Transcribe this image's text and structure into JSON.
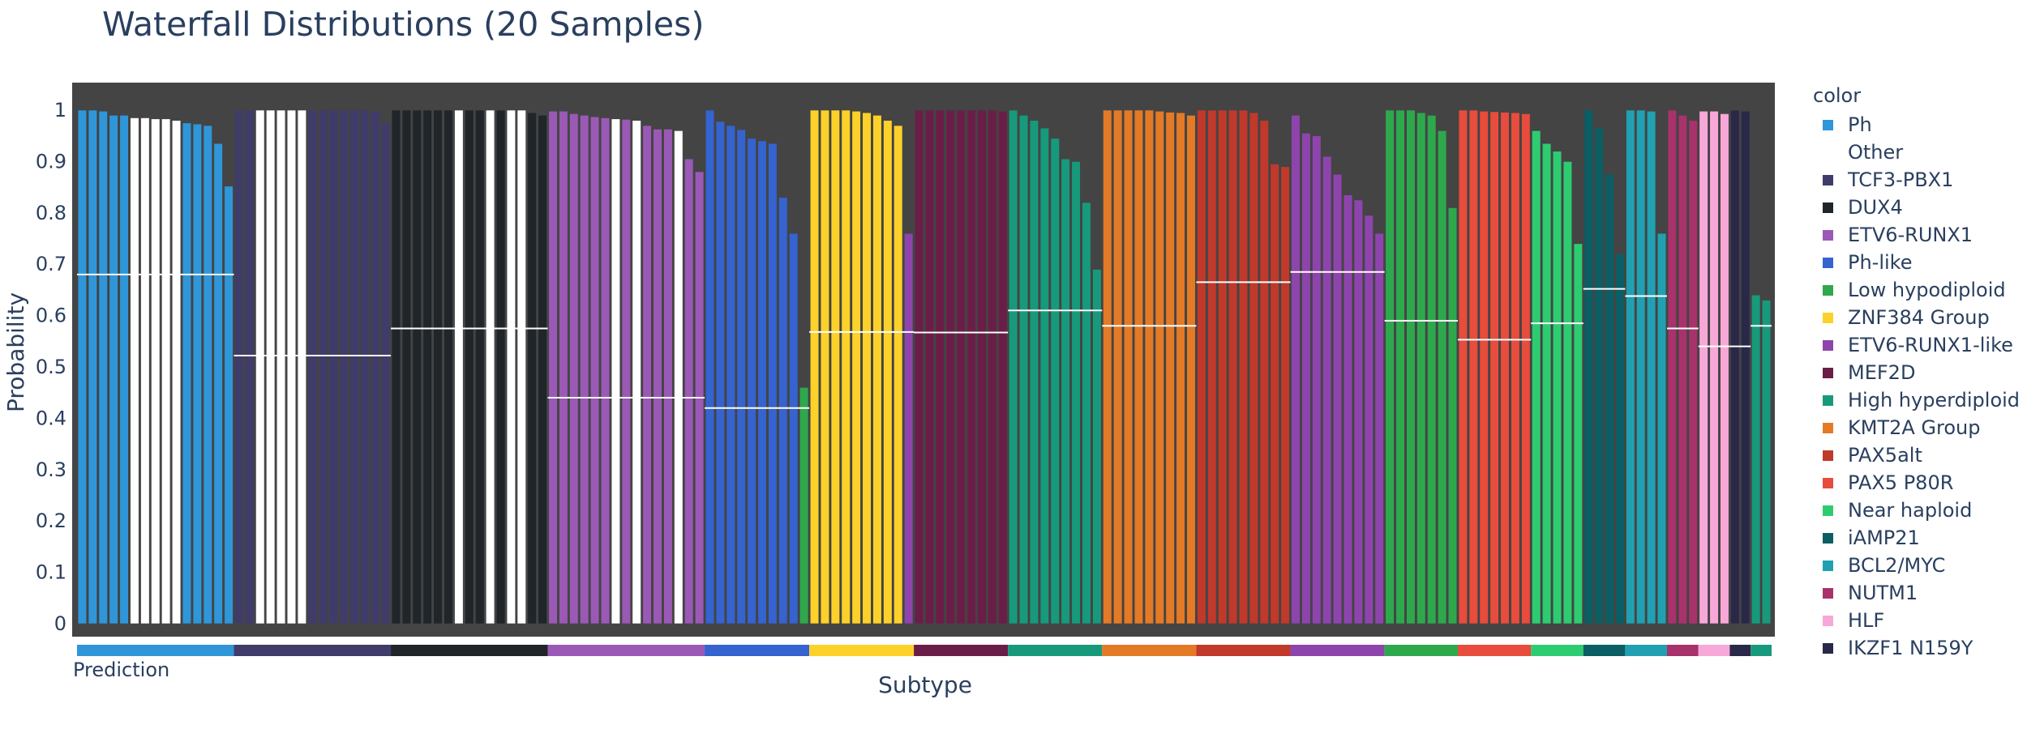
{
  "title": "Waterfall Distributions (20 Samples)",
  "chart_data": {
    "type": "bar",
    "title": "Waterfall Distributions (20 Samples)",
    "xlabel": "Subtype",
    "ylabel": "Probability",
    "ylim": [
      0,
      1
    ],
    "yticks": [
      "0",
      "0.1",
      "0.2",
      "0.3",
      "0.4",
      "0.5",
      "0.6",
      "0.7",
      "0.8",
      "0.9",
      "1"
    ],
    "plot_background": "#444444",
    "grid": false,
    "legend_title": "color",
    "legend_position": "right",
    "bottom_strip_label": "Prediction",
    "legend": [
      {
        "name": "Ph",
        "color": "#2f96d9"
      },
      {
        "name": "Other",
        "color": "#ffffff"
      },
      {
        "name": "TCF3-PBX1",
        "color": "#3f3c6b"
      },
      {
        "name": "DUX4",
        "color": "#1f2529"
      },
      {
        "name": "ETV6-RUNX1",
        "color": "#9b59b6"
      },
      {
        "name": "Ph-like",
        "color": "#3563cf"
      },
      {
        "name": "Low hypodiploid",
        "color": "#2ea84d"
      },
      {
        "name": "ZNF384 Group",
        "color": "#fcd12a"
      },
      {
        "name": "ETV6-RUNX1-like",
        "color": "#8e44ad"
      },
      {
        "name": "MEF2D",
        "color": "#6a1e47"
      },
      {
        "name": "High hyperdiploid",
        "color": "#179a7b"
      },
      {
        "name": "KMT2A Group",
        "color": "#e47a26"
      },
      {
        "name": "PAX5alt",
        "color": "#c0392b"
      },
      {
        "name": "PAX5 P80R",
        "color": "#e74c3c"
      },
      {
        "name": "Near haploid",
        "color": "#2ecc71"
      },
      {
        "name": "iAMP21",
        "color": "#0b5e63"
      },
      {
        "name": "BCL2/MYC",
        "color": "#21a0b1"
      },
      {
        "name": "NUTM1",
        "color": "#a8326b"
      },
      {
        "name": "HLF",
        "color": "#f7a8d8"
      },
      {
        "name": "IKZF1 N159Y",
        "color": "#2a2849"
      }
    ],
    "groups": [
      {
        "prediction": "Ph",
        "median": 0.68,
        "bars": [
          [
            "Ph",
            1.0
          ],
          [
            "Ph",
            1.0
          ],
          [
            "Ph",
            0.998
          ],
          [
            "Ph",
            0.99
          ],
          [
            "Ph",
            0.99
          ],
          [
            "Other",
            0.985
          ],
          [
            "Other",
            0.985
          ],
          [
            "Other",
            0.983
          ],
          [
            "Other",
            0.983
          ],
          [
            "Other",
            0.98
          ],
          [
            "Ph",
            0.975
          ],
          [
            "Ph",
            0.973
          ],
          [
            "Ph",
            0.97
          ],
          [
            "Ph",
            0.935
          ],
          [
            "Ph",
            0.852
          ]
        ]
      },
      {
        "prediction": "TCF3-PBX1",
        "median": 0.522,
        "bars": [
          [
            "TCF3-PBX1",
            1.0
          ],
          [
            "TCF3-PBX1",
            1.0
          ],
          [
            "Other",
            1.0
          ],
          [
            "Other",
            1.0
          ],
          [
            "Other",
            1.0
          ],
          [
            "Other",
            1.0
          ],
          [
            "Other",
            1.0
          ],
          [
            "TCF3-PBX1",
            1.0
          ],
          [
            "TCF3-PBX1",
            1.0
          ],
          [
            "TCF3-PBX1",
            1.0
          ],
          [
            "TCF3-PBX1",
            1.0
          ],
          [
            "TCF3-PBX1",
            1.0
          ],
          [
            "TCF3-PBX1",
            1.0
          ],
          [
            "TCF3-PBX1",
            0.998
          ],
          [
            "TCF3-PBX1",
            0.975
          ]
        ]
      },
      {
        "prediction": "DUX4",
        "median": 0.575,
        "bars": [
          [
            "DUX4",
            1.0
          ],
          [
            "DUX4",
            1.0
          ],
          [
            "DUX4",
            1.0
          ],
          [
            "DUX4",
            1.0
          ],
          [
            "DUX4",
            1.0
          ],
          [
            "DUX4",
            1.0
          ],
          [
            "Other",
            1.0
          ],
          [
            "DUX4",
            1.0
          ],
          [
            "DUX4",
            1.0
          ],
          [
            "Other",
            1.0
          ],
          [
            "DUX4",
            1.0
          ],
          [
            "Other",
            1.0
          ],
          [
            "Other",
            1.0
          ],
          [
            "DUX4",
            0.995
          ],
          [
            "DUX4",
            0.99
          ]
        ]
      },
      {
        "prediction": "ETV6-RUNX1",
        "median": 0.44,
        "bars": [
          [
            "ETV6-RUNX1",
            0.998
          ],
          [
            "ETV6-RUNX1",
            0.998
          ],
          [
            "ETV6-RUNX1",
            0.993
          ],
          [
            "ETV6-RUNX1",
            0.99
          ],
          [
            "ETV6-RUNX1",
            0.987
          ],
          [
            "ETV6-RUNX1",
            0.985
          ],
          [
            "Other",
            0.983
          ],
          [
            "ETV6-RUNX1",
            0.982
          ],
          [
            "Other",
            0.98
          ],
          [
            "ETV6-RUNX1",
            0.97
          ],
          [
            "ETV6-RUNX1",
            0.963
          ],
          [
            "ETV6-RUNX1",
            0.963
          ],
          [
            "Other",
            0.96
          ],
          [
            "ETV6-RUNX1",
            0.905
          ],
          [
            "ETV6-RUNX1",
            0.88
          ]
        ]
      },
      {
        "prediction": "Ph-like",
        "median": 0.42,
        "bars": [
          [
            "Ph-like",
            1.0
          ],
          [
            "Ph-like",
            0.978
          ],
          [
            "Ph-like",
            0.97
          ],
          [
            "Ph-like",
            0.962
          ],
          [
            "Ph-like",
            0.945
          ],
          [
            "Ph-like",
            0.94
          ],
          [
            "Ph-like",
            0.935
          ],
          [
            "Ph-like",
            0.83
          ],
          [
            "Ph-like",
            0.76
          ],
          [
            "Low hypodiploid",
            0.46
          ]
        ]
      },
      {
        "prediction": "ZNF384 Group",
        "median": 0.568,
        "bars": [
          [
            "ZNF384 Group",
            1.0
          ],
          [
            "ZNF384 Group",
            1.0
          ],
          [
            "ZNF384 Group",
            1.0
          ],
          [
            "ZNF384 Group",
            1.0
          ],
          [
            "ZNF384 Group",
            0.998
          ],
          [
            "ZNF384 Group",
            0.995
          ],
          [
            "ZNF384 Group",
            0.99
          ],
          [
            "ZNF384 Group",
            0.98
          ],
          [
            "ZNF384 Group",
            0.97
          ],
          [
            "ETV6-RUNX1-like",
            0.76
          ]
        ]
      },
      {
        "prediction": "MEF2D",
        "median": 0.567,
        "bars": [
          [
            "MEF2D",
            1.0
          ],
          [
            "MEF2D",
            1.0
          ],
          [
            "MEF2D",
            1.0
          ],
          [
            "MEF2D",
            1.0
          ],
          [
            "MEF2D",
            1.0
          ],
          [
            "MEF2D",
            1.0
          ],
          [
            "MEF2D",
            1.0
          ],
          [
            "MEF2D",
            1.0
          ],
          [
            "MEF2D",
            0.998
          ]
        ]
      },
      {
        "prediction": "High hyperdiploid",
        "median": 0.61,
        "bars": [
          [
            "High hyperdiploid",
            1.0
          ],
          [
            "High hyperdiploid",
            0.99
          ],
          [
            "High hyperdiploid",
            0.98
          ],
          [
            "High hyperdiploid",
            0.965
          ],
          [
            "High hyperdiploid",
            0.945
          ],
          [
            "High hyperdiploid",
            0.905
          ],
          [
            "High hyperdiploid",
            0.9
          ],
          [
            "High hyperdiploid",
            0.82
          ],
          [
            "High hyperdiploid",
            0.69
          ]
        ]
      },
      {
        "prediction": "KMT2A Group",
        "median": 0.58,
        "bars": [
          [
            "KMT2A Group",
            1.0
          ],
          [
            "KMT2A Group",
            1.0
          ],
          [
            "KMT2A Group",
            1.0
          ],
          [
            "KMT2A Group",
            1.0
          ],
          [
            "KMT2A Group",
            1.0
          ],
          [
            "KMT2A Group",
            0.998
          ],
          [
            "KMT2A Group",
            0.996
          ],
          [
            "KMT2A Group",
            0.995
          ],
          [
            "KMT2A Group",
            0.99
          ]
        ]
      },
      {
        "prediction": "PAX5alt",
        "median": 0.665,
        "bars": [
          [
            "PAX5alt",
            1.0
          ],
          [
            "PAX5alt",
            1.0
          ],
          [
            "PAX5alt",
            1.0
          ],
          [
            "PAX5alt",
            1.0
          ],
          [
            "PAX5alt",
            1.0
          ],
          [
            "PAX5alt",
            0.995
          ],
          [
            "PAX5alt",
            0.98
          ],
          [
            "PAX5alt",
            0.895
          ],
          [
            "PAX5alt",
            0.89
          ]
        ]
      },
      {
        "prediction": "ETV6-RUNX1-like",
        "median": 0.685,
        "bars": [
          [
            "ETV6-RUNX1-like",
            0.99
          ],
          [
            "ETV6-RUNX1-like",
            0.955
          ],
          [
            "ETV6-RUNX1-like",
            0.95
          ],
          [
            "ETV6-RUNX1-like",
            0.91
          ],
          [
            "ETV6-RUNX1-like",
            0.875
          ],
          [
            "ETV6-RUNX1-like",
            0.835
          ],
          [
            "ETV6-RUNX1-like",
            0.825
          ],
          [
            "ETV6-RUNX1-like",
            0.795
          ],
          [
            "ETV6-RUNX1-like",
            0.76
          ]
        ]
      },
      {
        "prediction": "Low hypodiploid",
        "median": 0.59,
        "bars": [
          [
            "Low hypodiploid",
            1.0
          ],
          [
            "Low hypodiploid",
            1.0
          ],
          [
            "Low hypodiploid",
            1.0
          ],
          [
            "Low hypodiploid",
            0.995
          ],
          [
            "Low hypodiploid",
            0.99
          ],
          [
            "Low hypodiploid",
            0.96
          ],
          [
            "Low hypodiploid",
            0.81
          ]
        ]
      },
      {
        "prediction": "PAX5 P80R",
        "median": 0.553,
        "bars": [
          [
            "PAX5 P80R",
            1.0
          ],
          [
            "PAX5 P80R",
            1.0
          ],
          [
            "PAX5 P80R",
            0.998
          ],
          [
            "PAX5 P80R",
            0.997
          ],
          [
            "PAX5 P80R",
            0.996
          ],
          [
            "PAX5 P80R",
            0.995
          ],
          [
            "PAX5 P80R",
            0.993
          ]
        ]
      },
      {
        "prediction": "Near haploid",
        "median": 0.585,
        "bars": [
          [
            "Near haploid",
            0.96
          ],
          [
            "Near haploid",
            0.935
          ],
          [
            "Near haploid",
            0.92
          ],
          [
            "Near haploid",
            0.9
          ],
          [
            "Near haploid",
            0.74
          ]
        ]
      },
      {
        "prediction": "iAMP21",
        "median": 0.652,
        "bars": [
          [
            "iAMP21",
            1.0
          ],
          [
            "iAMP21",
            0.965
          ],
          [
            "iAMP21",
            0.875
          ],
          [
            "iAMP21",
            0.72
          ]
        ]
      },
      {
        "prediction": "BCL2/MYC",
        "median": 0.638,
        "bars": [
          [
            "BCL2/MYC",
            1.0
          ],
          [
            "BCL2/MYC",
            1.0
          ],
          [
            "BCL2/MYC",
            0.998
          ],
          [
            "BCL2/MYC",
            0.76
          ]
        ]
      },
      {
        "prediction": "NUTM1",
        "median": 0.575,
        "bars": [
          [
            "NUTM1",
            1.0
          ],
          [
            "NUTM1",
            0.99
          ],
          [
            "NUTM1",
            0.98
          ]
        ]
      },
      {
        "prediction": "HLF",
        "median": 0.54,
        "bars": [
          [
            "HLF",
            0.998
          ],
          [
            "HLF",
            0.998
          ],
          [
            "HLF",
            0.993
          ]
        ]
      },
      {
        "prediction": "IKZF1 N159Y",
        "median": 0.54,
        "bars": [
          [
            "IKZF1 N159Y",
            1.0
          ],
          [
            "IKZF1 N159Y",
            0.998
          ]
        ]
      },
      {
        "prediction": "High hyperdiploid",
        "median": 0.58,
        "bars": [
          [
            "High hyperdiploid",
            0.64
          ],
          [
            "High hyperdiploid",
            0.63
          ]
        ]
      }
    ]
  }
}
